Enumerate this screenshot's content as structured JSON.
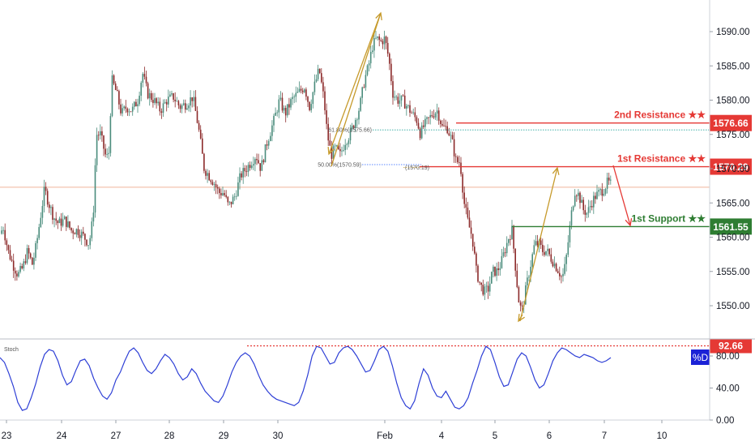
{
  "chart_data": [
    {
      "type": "candlestick",
      "title": "",
      "ylim": [
        1545.5,
        1593.5
      ],
      "y_ticks": [
        "1550.00",
        "1555.00",
        "1560.00",
        "1565.00",
        "1570.00",
        "1575.00",
        "1580.00",
        "1585.00",
        "1590.00"
      ],
      "x_ticks": [
        "23",
        "24",
        "27",
        "28",
        "29",
        "30",
        "Feb",
        "4",
        "5",
        "6",
        "7",
        "10"
      ],
      "grid": false,
      "colors": {
        "up": "#4a8c7c",
        "down": "#8c2a2a",
        "resistance": "#e53935",
        "support": "#2e7d32",
        "arrow": "#c69a2b",
        "price_line": "#f0b49a"
      },
      "close_path": [
        {
          "t": 0,
          "v": 1560.5
        },
        {
          "t": 4,
          "v": 1561.5
        },
        {
          "t": 10,
          "v": 1558
        },
        {
          "t": 16,
          "v": 1556
        },
        {
          "t": 22,
          "v": 1554.5
        },
        {
          "t": 28,
          "v": 1555.5
        },
        {
          "t": 34,
          "v": 1558
        },
        {
          "t": 40,
          "v": 1556
        },
        {
          "t": 45,
          "v": 1559
        },
        {
          "t": 50,
          "v": 1563
        },
        {
          "t": 55,
          "v": 1567
        },
        {
          "t": 60,
          "v": 1565
        },
        {
          "t": 66,
          "v": 1563
        },
        {
          "t": 72,
          "v": 1562
        },
        {
          "t": 80,
          "v": 1562.5
        },
        {
          "t": 88,
          "v": 1561
        },
        {
          "t": 96,
          "v": 1561
        },
        {
          "t": 104,
          "v": 1560
        },
        {
          "t": 110,
          "v": 1559
        },
        {
          "t": 115,
          "v": 1563
        },
        {
          "t": 119,
          "v": 1575
        },
        {
          "t": 124,
          "v": 1575
        },
        {
          "t": 130,
          "v": 1572
        },
        {
          "t": 134,
          "v": 1571.5
        },
        {
          "t": 138,
          "v": 1583
        },
        {
          "t": 144,
          "v": 1581
        },
        {
          "t": 150,
          "v": 1578
        },
        {
          "t": 156,
          "v": 1579
        },
        {
          "t": 163,
          "v": 1578.5
        },
        {
          "t": 170,
          "v": 1580
        },
        {
          "t": 176,
          "v": 1584
        },
        {
          "t": 182,
          "v": 1581
        },
        {
          "t": 190,
          "v": 1580
        },
        {
          "t": 198,
          "v": 1578.5
        },
        {
          "t": 206,
          "v": 1580
        },
        {
          "t": 214,
          "v": 1580.5
        },
        {
          "t": 222,
          "v": 1579
        },
        {
          "t": 230,
          "v": 1579.5
        },
        {
          "t": 238,
          "v": 1580.5
        },
        {
          "t": 245,
          "v": 1576
        },
        {
          "t": 252,
          "v": 1570
        },
        {
          "t": 258,
          "v": 1569
        },
        {
          "t": 264,
          "v": 1568
        },
        {
          "t": 270,
          "v": 1566.5
        },
        {
          "t": 276,
          "v": 1566.5
        },
        {
          "t": 282,
          "v": 1564.5
        },
        {
          "t": 290,
          "v": 1566
        },
        {
          "t": 297,
          "v": 1569
        },
        {
          "t": 304,
          "v": 1570
        },
        {
          "t": 310,
          "v": 1571
        },
        {
          "t": 316,
          "v": 1572
        },
        {
          "t": 322,
          "v": 1570
        },
        {
          "t": 330,
          "v": 1574
        },
        {
          "t": 338,
          "v": 1577
        },
        {
          "t": 345,
          "v": 1580
        },
        {
          "t": 352,
          "v": 1578
        },
        {
          "t": 360,
          "v": 1580
        },
        {
          "t": 368,
          "v": 1581
        },
        {
          "t": 376,
          "v": 1582
        },
        {
          "t": 382,
          "v": 1579
        },
        {
          "t": 388,
          "v": 1582
        },
        {
          "t": 394,
          "v": 1584.5
        },
        {
          "t": 400,
          "v": 1580
        },
        {
          "t": 404,
          "v": 1575
        },
        {
          "t": 409,
          "v": 1572
        },
        {
          "t": 414,
          "v": 1573
        },
        {
          "t": 420,
          "v": 1572
        },
        {
          "t": 426,
          "v": 1574
        },
        {
          "t": 432,
          "v": 1575
        },
        {
          "t": 438,
          "v": 1577
        },
        {
          "t": 444,
          "v": 1579
        },
        {
          "t": 450,
          "v": 1583
        },
        {
          "t": 455,
          "v": 1585
        },
        {
          "t": 460,
          "v": 1588
        },
        {
          "t": 465,
          "v": 1589
        },
        {
          "t": 470,
          "v": 1588.5
        },
        {
          "t": 475,
          "v": 1589
        },
        {
          "t": 480,
          "v": 1586
        },
        {
          "t": 485,
          "v": 1581
        },
        {
          "t": 491,
          "v": 1580
        },
        {
          "t": 497,
          "v": 1580
        },
        {
          "t": 503,
          "v": 1579
        },
        {
          "t": 509,
          "v": 1578
        },
        {
          "t": 515,
          "v": 1577
        },
        {
          "t": 519,
          "v": 1575
        },
        {
          "t": 522,
          "v": 1576
        },
        {
          "t": 528,
          "v": 1577
        },
        {
          "t": 534,
          "v": 1578
        },
        {
          "t": 540,
          "v": 1578.5
        },
        {
          "t": 546,
          "v": 1576
        },
        {
          "t": 552,
          "v": 1576
        },
        {
          "t": 558,
          "v": 1574
        },
        {
          "t": 563,
          "v": 1571
        },
        {
          "t": 568,
          "v": 1571
        },
        {
          "t": 573,
          "v": 1565
        },
        {
          "t": 578,
          "v": 1562
        },
        {
          "t": 583,
          "v": 1560
        },
        {
          "t": 588,
          "v": 1555
        },
        {
          "t": 593,
          "v": 1553
        },
        {
          "t": 598,
          "v": 1552
        },
        {
          "t": 603,
          "v": 1552.5
        },
        {
          "t": 608,
          "v": 1555
        },
        {
          "t": 613,
          "v": 1555
        },
        {
          "t": 618,
          "v": 1556
        },
        {
          "t": 623,
          "v": 1558
        },
        {
          "t": 628,
          "v": 1560
        },
        {
          "t": 632,
          "v": 1561
        },
        {
          "t": 636,
          "v": 1556
        },
        {
          "t": 640,
          "v": 1551
        },
        {
          "t": 644,
          "v": 1549
        },
        {
          "t": 650,
          "v": 1553
        },
        {
          "t": 655,
          "v": 1556
        },
        {
          "t": 660,
          "v": 1559
        },
        {
          "t": 665,
          "v": 1559
        },
        {
          "t": 670,
          "v": 1558
        },
        {
          "t": 675,
          "v": 1558
        },
        {
          "t": 680,
          "v": 1557
        },
        {
          "t": 685,
          "v": 1556
        },
        {
          "t": 690,
          "v": 1555
        },
        {
          "t": 694,
          "v": 1554
        },
        {
          "t": 698,
          "v": 1556
        },
        {
          "t": 702,
          "v": 1560
        },
        {
          "t": 706,
          "v": 1564
        },
        {
          "t": 710,
          "v": 1567
        },
        {
          "t": 715,
          "v": 1566
        },
        {
          "t": 720,
          "v": 1564
        },
        {
          "t": 725,
          "v": 1563.5
        },
        {
          "t": 730,
          "v": 1565
        },
        {
          "t": 735,
          "v": 1566
        },
        {
          "t": 740,
          "v": 1566.5
        },
        {
          "t": 745,
          "v": 1567
        },
        {
          "t": 750,
          "v": 1568
        },
        {
          "t": 754,
          "v": 1567.7
        }
      ],
      "price_line": 1567.3,
      "levels": [
        {
          "name": "2nd Resistance ★★",
          "value": 1576.66,
          "label": "1576.66",
          "color": "#e53935"
        },
        {
          "name": "1st Resistance ★★",
          "value": 1570.29,
          "label": "1570.29",
          "color": "#e53935"
        },
        {
          "name": "1st Support ★★",
          "value": 1561.55,
          "label": "1561.55",
          "color": "#2e7d32"
        }
      ],
      "fib_levels": [
        {
          "label": "61.80%(1575.66)",
          "value": 1575.66
        },
        {
          "label": "50.00%(1570.59)",
          "value": 1570.59
        },
        {
          "label": "(1570.19)",
          "value": 1570.19
        }
      ]
    },
    {
      "type": "line",
      "indicator": "Stoch",
      "series_name": "%D",
      "ylim": [
        0,
        100
      ],
      "y_ticks": [
        "0.00",
        "40.00",
        "80.00"
      ],
      "level": {
        "value": 92.66,
        "label": "92.66"
      },
      "values": [
        78,
        72,
        58,
        42,
        22,
        12,
        14,
        28,
        45,
        66,
        82,
        88,
        86,
        74,
        56,
        44,
        48,
        62,
        74,
        76,
        68,
        52,
        40,
        30,
        26,
        34,
        50,
        60,
        74,
        86,
        90,
        84,
        72,
        62,
        58,
        64,
        74,
        82,
        78,
        70,
        58,
        50,
        54,
        64,
        58,
        46,
        36,
        30,
        24,
        22,
        30,
        44,
        60,
        72,
        80,
        84,
        80,
        70,
        56,
        44,
        36,
        30,
        26,
        24,
        22,
        20,
        18,
        22,
        36,
        56,
        80,
        92,
        90,
        80,
        70,
        72,
        84,
        90,
        92,
        88,
        80,
        70,
        60,
        62,
        74,
        88,
        92,
        86,
        68,
        46,
        28,
        18,
        14,
        24,
        46,
        64,
        56,
        40,
        30,
        28,
        36,
        26,
        16,
        14,
        18,
        28,
        46,
        62,
        80,
        92,
        88,
        72,
        54,
        42,
        44,
        60,
        76,
        84,
        80,
        66,
        50,
        40,
        44,
        58,
        74,
        84,
        90,
        88,
        84,
        80,
        78,
        82,
        80,
        78,
        74,
        72,
        74,
        78
      ]
    }
  ]
}
